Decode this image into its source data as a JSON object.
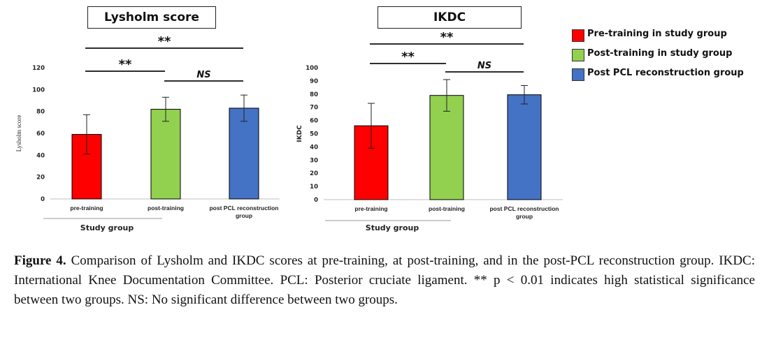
{
  "legend": {
    "items": [
      {
        "label": "Pre-training in study group",
        "color": "#ff0000"
      },
      {
        "label": "Post-training in study group",
        "color": "#92d050"
      },
      {
        "label": "Post PCL reconstruction group",
        "color": "#4472c4"
      }
    ]
  },
  "chart_data": [
    {
      "type": "bar",
      "title": "Lysholm score",
      "ylabel": "Lysholm score",
      "ylim": [
        0,
        120
      ],
      "yticks": [
        0,
        20,
        40,
        60,
        80,
        100,
        120
      ],
      "categories": [
        "pre-training",
        "post-training",
        "post PCL reconstruction group"
      ],
      "values": [
        59,
        82,
        83
      ],
      "error": [
        18,
        11,
        12
      ],
      "colors": [
        "#ff0000",
        "#92d050",
        "#4472c4"
      ],
      "group_label": "Study group",
      "significance": [
        {
          "from": 0,
          "to": 1,
          "label": "**"
        },
        {
          "from": 1,
          "to": 2,
          "label": "NS"
        },
        {
          "from": 0,
          "to": 2,
          "label": "**"
        }
      ]
    },
    {
      "type": "bar",
      "title": "IKDC",
      "ylabel": "IKDC",
      "ylim": [
        0,
        100
      ],
      "yticks": [
        0,
        10,
        20,
        30,
        40,
        50,
        60,
        70,
        80,
        90,
        100
      ],
      "categories": [
        "pre-training",
        "post-training",
        "post PCL reconstruction group"
      ],
      "values": [
        56,
        79,
        79.5
      ],
      "error": [
        17,
        12,
        7
      ],
      "colors": [
        "#ff0000",
        "#92d050",
        "#4472c4"
      ],
      "group_label": "Study group",
      "significance": [
        {
          "from": 0,
          "to": 1,
          "label": "**"
        },
        {
          "from": 1,
          "to": 2,
          "label": "NS"
        },
        {
          "from": 0,
          "to": 2,
          "label": "**"
        }
      ]
    }
  ],
  "caption": {
    "label": "Figure 4.",
    "text": "Comparison of Lysholm and IKDC scores at pre-training, at post-training, and in the post-PCL reconstruction group. IKDC: International Knee Documentation Committee. PCL: Posterior cruciate ligament. ** p < 0.01 indicates high statistical significance between two groups. NS: No significant difference between two groups."
  }
}
